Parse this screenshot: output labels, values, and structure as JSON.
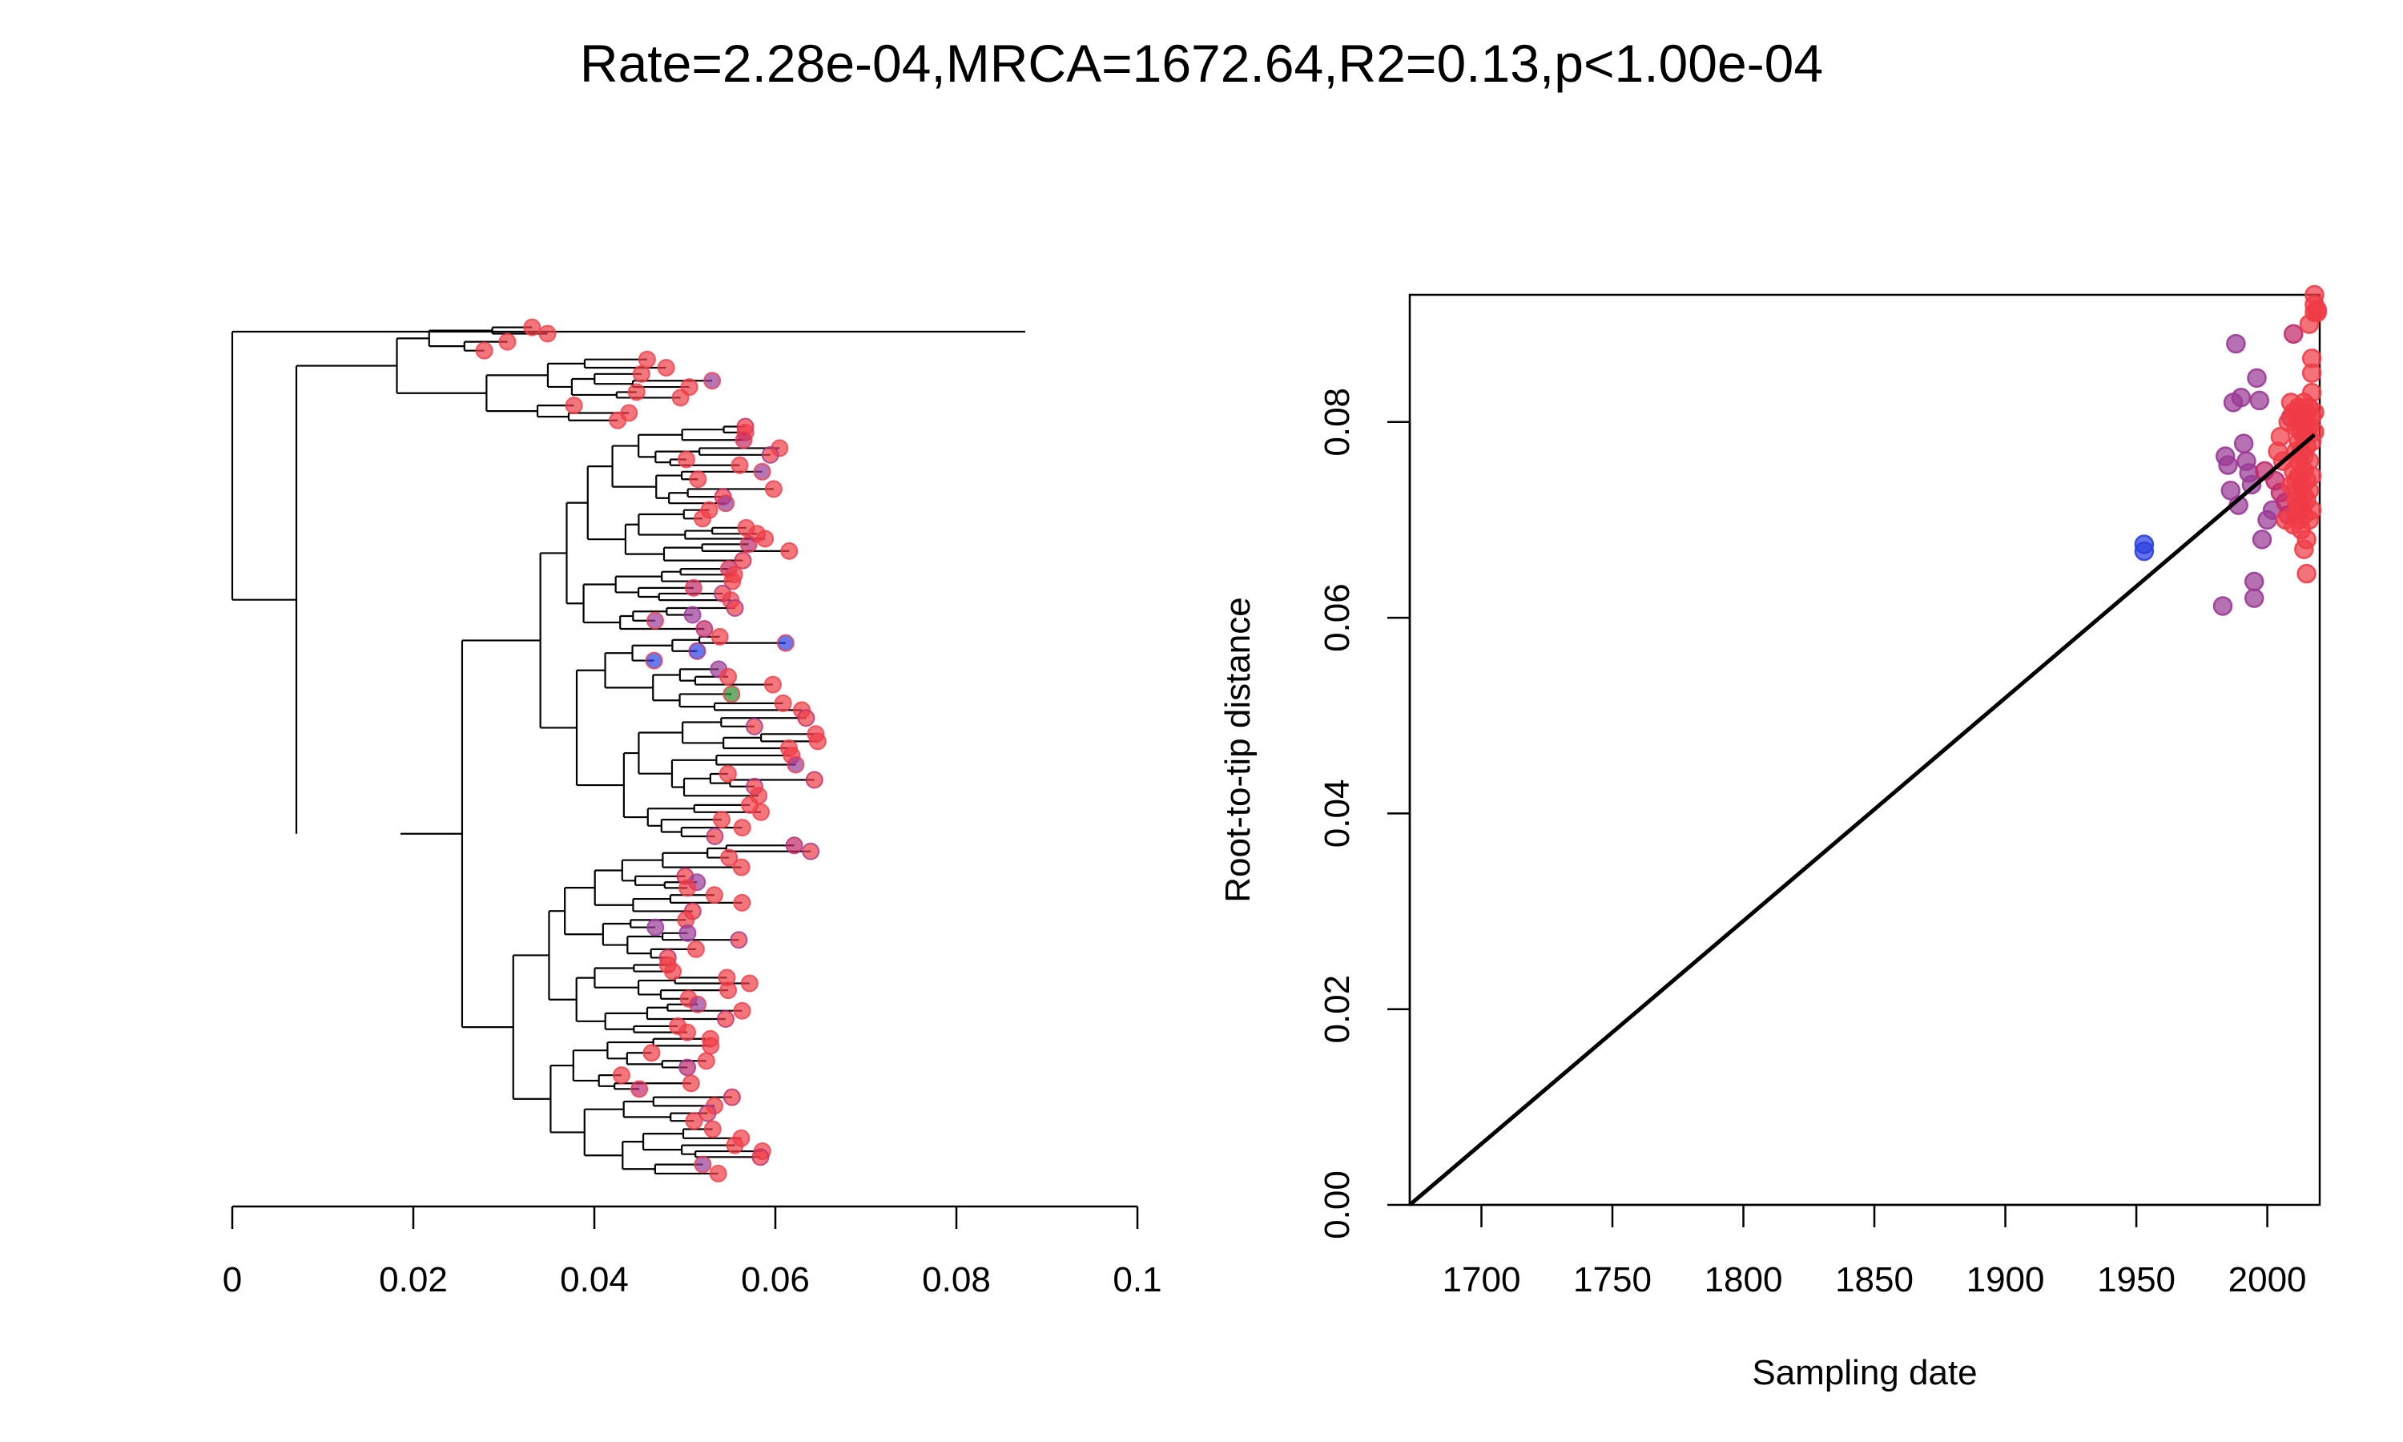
{
  "title": "Rate=2.28e-04,MRCA=1672.64,R2=0.13,p<1.00e-04",
  "colors": {
    "red": "#f03c46",
    "purple": "#9a3a96",
    "magenta": "#c02a6a",
    "blue": "#2b3ee0",
    "green": "#2c8a2c",
    "line": "#000000"
  },
  "chart_data": [
    {
      "type": "tree",
      "xlabel": "",
      "ylabel": "",
      "xlim": [
        0,
        0.1
      ],
      "xticks": [
        "0",
        "0.02",
        "0.04",
        "0.06",
        "0.08",
        "0.1"
      ],
      "xtick_values": [
        0,
        0.02,
        0.04,
        0.06,
        0.08,
        0.1
      ]
    },
    {
      "type": "scatter",
      "xlabel": "Sampling date",
      "ylabel": "Root-to-tip distance",
      "xlim": [
        1672.64,
        2020
      ],
      "ylim": [
        0,
        0.093
      ],
      "xticks": [
        "1700",
        "1750",
        "1800",
        "1850",
        "1900",
        "1950",
        "2000"
      ],
      "xtick_values": [
        1700,
        1750,
        1800,
        1850,
        1900,
        1950,
        2000
      ],
      "yticks": [
        "0.00",
        "0.02",
        "0.04",
        "0.06",
        "0.08"
      ],
      "ytick_values": [
        0,
        0.02,
        0.04,
        0.06,
        0.08
      ],
      "regression": {
        "rate": 0.000228,
        "mrca": 1672.64,
        "r2": 0.13,
        "x": [
          1672.64,
          2018
        ],
        "y": [
          0.0,
          0.0787
        ]
      },
      "series": [
        {
          "color": "blue",
          "points": [
            [
              1953,
              0.0668
            ],
            [
              1953,
              0.0675
            ]
          ]
        },
        {
          "color": "purple",
          "points": [
            [
              1983,
              0.0612
            ],
            [
              1984,
              0.0765
            ],
            [
              1985,
              0.0756
            ],
            [
              1986,
              0.073
            ],
            [
              1987,
              0.082
            ],
            [
              1988,
              0.088
            ],
            [
              1989,
              0.0715
            ],
            [
              1990,
              0.0825
            ],
            [
              1991,
              0.0778
            ],
            [
              1992,
              0.076
            ],
            [
              1993,
              0.0748
            ],
            [
              1994,
              0.0736
            ],
            [
              1995,
              0.062
            ],
            [
              1995,
              0.0637
            ],
            [
              1996,
              0.0845
            ],
            [
              1997,
              0.0822
            ],
            [
              1998,
              0.068
            ],
            [
              2000,
              0.07
            ],
            [
              2002,
              0.071
            ]
          ]
        },
        {
          "color": "magenta",
          "points": [
            [
              1999,
              0.075
            ],
            [
              2003,
              0.074
            ],
            [
              2005,
              0.0728
            ],
            [
              2007,
              0.0718
            ],
            [
              2008,
              0.0705
            ],
            [
              2009,
              0.0805
            ],
            [
              2010,
              0.089
            ]
          ]
        },
        {
          "color": "red",
          "points": [
            [
              2004,
              0.077
            ],
            [
              2005,
              0.0785
            ],
            [
              2006,
              0.076
            ],
            [
              2007,
              0.07
            ],
            [
              2008,
              0.08
            ],
            [
              2009,
              0.082
            ],
            [
              2009,
              0.0735
            ],
            [
              2010,
              0.081
            ],
            [
              2010,
              0.075
            ],
            [
              2010,
              0.0695
            ],
            [
              2011,
              0.0795
            ],
            [
              2011,
              0.077
            ],
            [
              2011,
              0.074
            ],
            [
              2011,
              0.072
            ],
            [
              2011,
              0.0706
            ],
            [
              2012,
              0.0815
            ],
            [
              2012,
              0.08
            ],
            [
              2012,
              0.078
            ],
            [
              2012,
              0.076
            ],
            [
              2012,
              0.0745
            ],
            [
              2012,
              0.073
            ],
            [
              2012,
              0.0715
            ],
            [
              2012,
              0.07
            ],
            [
              2013,
              0.0805
            ],
            [
              2013,
              0.079
            ],
            [
              2013,
              0.077
            ],
            [
              2013,
              0.0735
            ],
            [
              2013,
              0.0712
            ],
            [
              2013,
              0.069
            ],
            [
              2014,
              0.082
            ],
            [
              2014,
              0.08
            ],
            [
              2014,
              0.0785
            ],
            [
              2014,
              0.0765
            ],
            [
              2014,
              0.075
            ],
            [
              2014,
              0.0725
            ],
            [
              2014,
              0.0705
            ],
            [
              2014,
              0.067
            ],
            [
              2015,
              0.081
            ],
            [
              2015,
              0.079
            ],
            [
              2015,
              0.0775
            ],
            [
              2015,
              0.074
            ],
            [
              2015,
              0.072
            ],
            [
              2015,
              0.068
            ],
            [
              2015,
              0.0645
            ],
            [
              2016,
              0.09
            ],
            [
              2016,
              0.0815
            ],
            [
              2016,
              0.0795
            ],
            [
              2016,
              0.076
            ],
            [
              2016,
              0.073
            ],
            [
              2016,
              0.07
            ],
            [
              2017,
              0.0865
            ],
            [
              2017,
              0.085
            ],
            [
              2017,
              0.083
            ],
            [
              2017,
              0.0805
            ],
            [
              2017,
              0.078
            ],
            [
              2017,
              0.0745
            ],
            [
              2017,
              0.071
            ],
            [
              2018,
              0.093
            ],
            [
              2018,
              0.092
            ],
            [
              2018,
              0.0912
            ],
            [
              2018,
              0.081
            ],
            [
              2018,
              0.079
            ],
            [
              2019,
              0.0915
            ],
            [
              2019,
              0.0912
            ]
          ]
        }
      ]
    }
  ]
}
